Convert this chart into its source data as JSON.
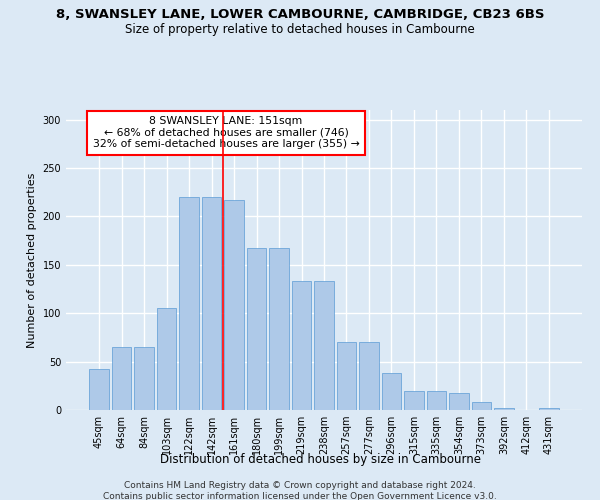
{
  "title": "8, SWANSLEY LANE, LOWER CAMBOURNE, CAMBRIDGE, CB23 6BS",
  "subtitle": "Size of property relative to detached houses in Cambourne",
  "xlabel": "Distribution of detached houses by size in Cambourne",
  "ylabel": "Number of detached properties",
  "categories": [
    "45sqm",
    "64sqm",
    "84sqm",
    "103sqm",
    "122sqm",
    "142sqm",
    "161sqm",
    "180sqm",
    "199sqm",
    "219sqm",
    "238sqm",
    "257sqm",
    "277sqm",
    "296sqm",
    "315sqm",
    "335sqm",
    "354sqm",
    "373sqm",
    "392sqm",
    "412sqm",
    "431sqm"
  ],
  "values": [
    42,
    65,
    65,
    105,
    220,
    220,
    217,
    167,
    167,
    133,
    133,
    70,
    70,
    38,
    20,
    20,
    18,
    8,
    2,
    0,
    2
  ],
  "bar_color": "#aec9e8",
  "bar_edge_color": "#5b9bd5",
  "vline_index": 5.5,
  "vline_color": "red",
  "annotation_text": "8 SWANSLEY LANE: 151sqm\n← 68% of detached houses are smaller (746)\n32% of semi-detached houses are larger (355) →",
  "annotation_box_facecolor": "white",
  "annotation_box_edgecolor": "red",
  "background_color": "#dce9f5",
  "grid_color": "white",
  "footer1": "Contains HM Land Registry data © Crown copyright and database right 2024.",
  "footer2": "Contains public sector information licensed under the Open Government Licence v3.0.",
  "ylim": [
    0,
    310
  ],
  "yticks": [
    0,
    50,
    100,
    150,
    200,
    250,
    300
  ]
}
